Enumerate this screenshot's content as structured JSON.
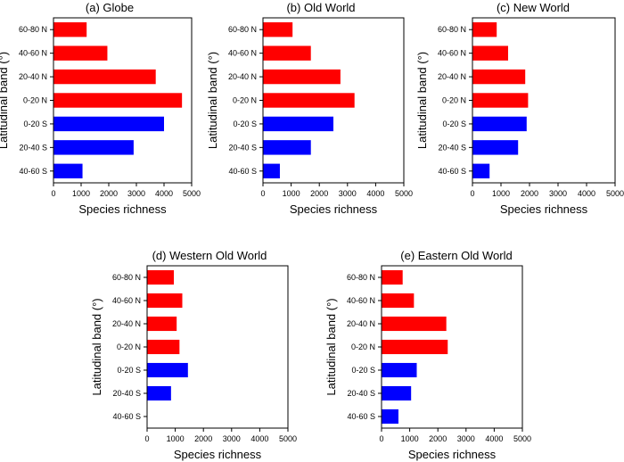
{
  "chart_data": [
    {
      "type": "bar",
      "orientation": "horizontal",
      "title": "(a) Globe",
      "xlabel": "Species richness",
      "ylabel": "Latitudinal band (°)",
      "categories": [
        "60-80 N",
        "40-60 N",
        "20-40 N",
        "0-20 N",
        "0-20 S",
        "20-40 S",
        "40-60 S"
      ],
      "values": [
        1200,
        1950,
        3700,
        4650,
        4000,
        2900,
        1050
      ],
      "bar_colors": [
        "#ff0000",
        "#ff0000",
        "#ff0000",
        "#ff0000",
        "#0000ff",
        "#0000ff",
        "#0000ff"
      ],
      "xlim": [
        0,
        5000
      ],
      "xticks": [
        "0",
        "1000",
        "2000",
        "3000",
        "4000",
        "5000"
      ]
    },
    {
      "type": "bar",
      "orientation": "horizontal",
      "title": "(b) Old World",
      "xlabel": "Species richness",
      "ylabel": "Latitudinal band (°)",
      "categories": [
        "60-80 N",
        "40-60 N",
        "20-40 N",
        "0-20 N",
        "0-20 S",
        "20-40 S",
        "40-60 S"
      ],
      "values": [
        1050,
        1700,
        2750,
        3250,
        2500,
        1700,
        600
      ],
      "bar_colors": [
        "#ff0000",
        "#ff0000",
        "#ff0000",
        "#ff0000",
        "#0000ff",
        "#0000ff",
        "#0000ff"
      ],
      "xlim": [
        0,
        5000
      ],
      "xticks": [
        "0",
        "1000",
        "2000",
        "3000",
        "4000",
        "5000"
      ]
    },
    {
      "type": "bar",
      "orientation": "horizontal",
      "title": "(c) New World",
      "xlabel": "Species richness",
      "ylabel": "Latitudinal band (°)",
      "categories": [
        "60-80 N",
        "40-60 N",
        "20-40 N",
        "0-20 N",
        "0-20 S",
        "20-40 S",
        "40-60 S"
      ],
      "values": [
        850,
        1250,
        1850,
        1950,
        1900,
        1600,
        600
      ],
      "bar_colors": [
        "#ff0000",
        "#ff0000",
        "#ff0000",
        "#ff0000",
        "#0000ff",
        "#0000ff",
        "#0000ff"
      ],
      "xlim": [
        0,
        5000
      ],
      "xticks": [
        "0",
        "1000",
        "2000",
        "3000",
        "4000",
        "5000"
      ]
    },
    {
      "type": "bar",
      "orientation": "horizontal",
      "title": "(d) Western Old World",
      "xlabel": "Species richness",
      "ylabel": "Latitudinal band (°)",
      "categories": [
        "60-80 N",
        "40-60 N",
        "20-40 N",
        "0-20 N",
        "0-20 S",
        "20-40 S",
        "40-60 S"
      ],
      "values": [
        950,
        1250,
        1050,
        1150,
        1450,
        850,
        0
      ],
      "bar_colors": [
        "#ff0000",
        "#ff0000",
        "#ff0000",
        "#ff0000",
        "#0000ff",
        "#0000ff",
        "#0000ff"
      ],
      "xlim": [
        0,
        5000
      ],
      "xticks": [
        "0",
        "1000",
        "2000",
        "3000",
        "4000",
        "5000"
      ]
    },
    {
      "type": "bar",
      "orientation": "horizontal",
      "title": "(e) Eastern Old World",
      "xlabel": "Species richness",
      "ylabel": "Latitudinal band (°)",
      "categories": [
        "60-80 N",
        "40-60 N",
        "20-40 N",
        "0-20 N",
        "0-20 S",
        "20-40 S",
        "40-60 S"
      ],
      "values": [
        750,
        1150,
        2300,
        2350,
        1250,
        1050,
        600
      ],
      "bar_colors": [
        "#ff0000",
        "#ff0000",
        "#ff0000",
        "#ff0000",
        "#0000ff",
        "#0000ff",
        "#0000ff"
      ],
      "xlim": [
        0,
        5000
      ],
      "xticks": [
        "0",
        "1000",
        "2000",
        "3000",
        "4000",
        "5000"
      ]
    }
  ]
}
